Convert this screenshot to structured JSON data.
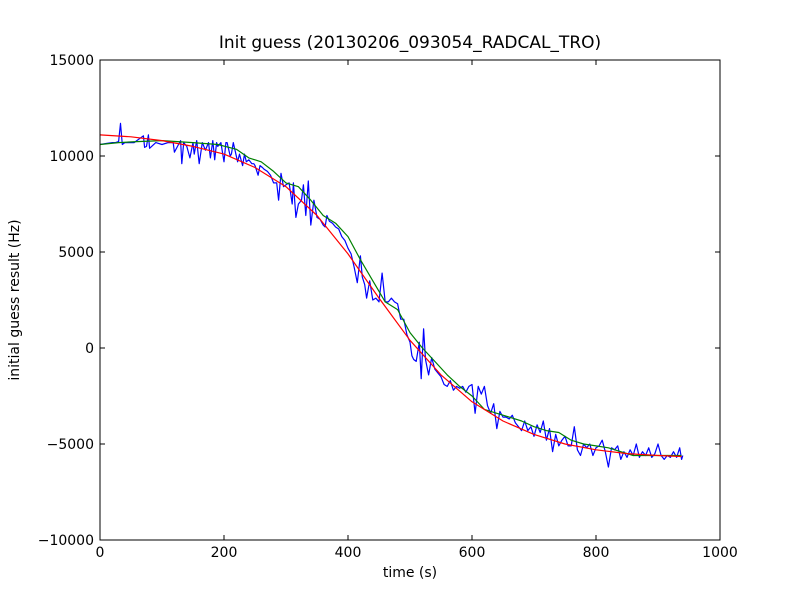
{
  "chart_data": {
    "type": "line",
    "title": "Init guess (20130206_093054_RADCAL_TRO)",
    "xlabel": "time (s)",
    "ylabel": "initial guess result (Hz)",
    "xlim": [
      0,
      1000
    ],
    "ylim": [
      -10000,
      15000
    ],
    "xticks": [
      0,
      200,
      400,
      600,
      800,
      1000
    ],
    "xtick_labels": [
      "0",
      "200",
      "400",
      "600",
      "800",
      "1000"
    ],
    "yticks": [
      15000,
      10000,
      5000,
      0,
      -5000,
      -10000
    ],
    "ytick_labels": [
      "15000",
      "10000",
      "5000",
      "0",
      "−10000"
    ],
    "ytick_labels_full": [
      "15000",
      "10000",
      "5000",
      "0",
      "−5000",
      "−10000"
    ],
    "grid": false,
    "legend": "none",
    "series": [
      {
        "color": "#0000ff",
        "style": "raw",
        "x": [
          0,
          10,
          20,
          25,
          30,
          33,
          36,
          40,
          45,
          55,
          70,
          72,
          75,
          78,
          80,
          90,
          100,
          110,
          118,
          120,
          125,
          130,
          132,
          135,
          140,
          145,
          150,
          152,
          156,
          160,
          165,
          170,
          175,
          178,
          182,
          185,
          188,
          190,
          195,
          200,
          203,
          205,
          210,
          212,
          215,
          222,
          225,
          230,
          233,
          236,
          240,
          245,
          248,
          250,
          255,
          258,
          262,
          265,
          270,
          275,
          280,
          285,
          288,
          292,
          296,
          300,
          305,
          310,
          312,
          316,
          320,
          325,
          328,
          332,
          336,
          340,
          345,
          350,
          355,
          360,
          363,
          366,
          370,
          375,
          380,
          385,
          390,
          395,
          400,
          405,
          410,
          415,
          420,
          423,
          427,
          430,
          435,
          440,
          445,
          450,
          455,
          460,
          465,
          470,
          475,
          480,
          485,
          490,
          495,
          500,
          503,
          506,
          510,
          515,
          518,
          522,
          525,
          530,
          535,
          540,
          545,
          550,
          555,
          560,
          565,
          570,
          575,
          580,
          585,
          590,
          595,
          600,
          605,
          610,
          615,
          620,
          625,
          630,
          635,
          640,
          645,
          650,
          655,
          660,
          665,
          670,
          675,
          680,
          685,
          690,
          695,
          700,
          705,
          710,
          715,
          720,
          725,
          730,
          735,
          740,
          745,
          750,
          755,
          760,
          765,
          770,
          775,
          780,
          785,
          790,
          795,
          800,
          805,
          810,
          815,
          820,
          825,
          830,
          835,
          840,
          845,
          850,
          855,
          860,
          865,
          870,
          875,
          880,
          885,
          890,
          895,
          900,
          905,
          910,
          915,
          920,
          925,
          930,
          935,
          938,
          940
        ],
        "y": [
          10600,
          10650,
          10700,
          10700,
          10750,
          11700,
          10600,
          10700,
          10700,
          10700,
          11050,
          10450,
          10500,
          11100,
          10400,
          10700,
          10600,
          10700,
          10700,
          10200,
          10500,
          10800,
          9600,
          10700,
          10500,
          9900,
          10700,
          10100,
          10800,
          9600,
          10700,
          10300,
          10700,
          9900,
          10800,
          9800,
          10700,
          10500,
          10700,
          9700,
          10700,
          10700,
          10000,
          10100,
          10700,
          9700,
          10100,
          9500,
          10100,
          9700,
          9800,
          9600,
          9600,
          9500,
          9000,
          9500,
          9400,
          9300,
          9200,
          9000,
          8600,
          8600,
          7700,
          9100,
          8400,
          8500,
          8600,
          7500,
          8600,
          6800,
          7500,
          7700,
          8500,
          6900,
          8700,
          6400,
          7700,
          6800,
          6700,
          6400,
          6300,
          6900,
          6600,
          6500,
          6300,
          6200,
          5800,
          5600,
          5200,
          4900,
          4200,
          3400,
          4800,
          3700,
          3300,
          2600,
          3500,
          2500,
          2600,
          2400,
          3900,
          2400,
          2400,
          2600,
          2400,
          2300,
          1500,
          1500,
          700,
          300,
          -400,
          -600,
          -700,
          300,
          -1600,
          1000,
          -600,
          -1400,
          -500,
          -1100,
          -1300,
          -1500,
          -1900,
          -2000,
          -1700,
          -2200,
          -2000,
          -2100,
          -2000,
          -2300,
          -2000,
          -1900,
          -3400,
          -2000,
          -2400,
          -2000,
          -3000,
          -3400,
          -2900,
          -4200,
          -3300,
          -3600,
          -3600,
          -3700,
          -3500,
          -3900,
          -4100,
          -4300,
          -3800,
          -4300,
          -4100,
          -4600,
          -4000,
          -4400,
          -3800,
          -4800,
          -4200,
          -5400,
          -4500,
          -5100,
          -4800,
          -4600,
          -5100,
          -5100,
          -4100,
          -5300,
          -5600,
          -5000,
          -5200,
          -5000,
          -5600,
          -5200,
          -5100,
          -4800,
          -5400,
          -6200,
          -5200,
          -5300,
          -5100,
          -5800,
          -5400,
          -5700,
          -5300,
          -5600,
          -5000,
          -5700,
          -5400,
          -5600,
          -5200,
          -5700,
          -5500,
          -5000,
          -5600,
          -5800,
          -5600,
          -5700,
          -5400,
          -5700,
          -5200,
          -5800,
          -5600
        ]
      },
      {
        "color": "#008000",
        "style": "smoothed",
        "x": [
          0,
          30,
          60,
          100,
          150,
          190,
          220,
          240,
          260,
          280,
          300,
          320,
          340,
          360,
          380,
          400,
          420,
          440,
          460,
          480,
          500,
          520,
          540,
          560,
          580,
          600,
          620,
          640,
          660,
          680,
          700,
          720,
          740,
          760,
          780,
          800,
          820,
          840,
          860,
          880,
          900,
          920,
          938
        ],
        "y": [
          10600,
          10700,
          10750,
          10800,
          10700,
          10600,
          10350,
          9900,
          9700,
          9200,
          8600,
          8400,
          7700,
          6900,
          6500,
          5800,
          4600,
          3500,
          2400,
          2000,
          800,
          0,
          -700,
          -1400,
          -2000,
          -2500,
          -3200,
          -3400,
          -3600,
          -3800,
          -4100,
          -4300,
          -4400,
          -4800,
          -5000,
          -5100,
          -5200,
          -5400,
          -5600,
          -5600,
          -5600,
          -5600,
          -5600
        ]
      },
      {
        "color": "#ff0000",
        "style": "fit",
        "x": [
          0,
          50,
          100,
          150,
          200,
          250,
          300,
          350,
          400,
          450,
          500,
          550,
          600,
          650,
          700,
          750,
          800,
          850,
          900,
          938
        ],
        "y": [
          11100,
          11000,
          10800,
          10500,
          10100,
          9400,
          8400,
          6900,
          4900,
          2600,
          400,
          -1400,
          -2800,
          -3800,
          -4500,
          -5000,
          -5300,
          -5500,
          -5600,
          -5650
        ]
      }
    ]
  }
}
